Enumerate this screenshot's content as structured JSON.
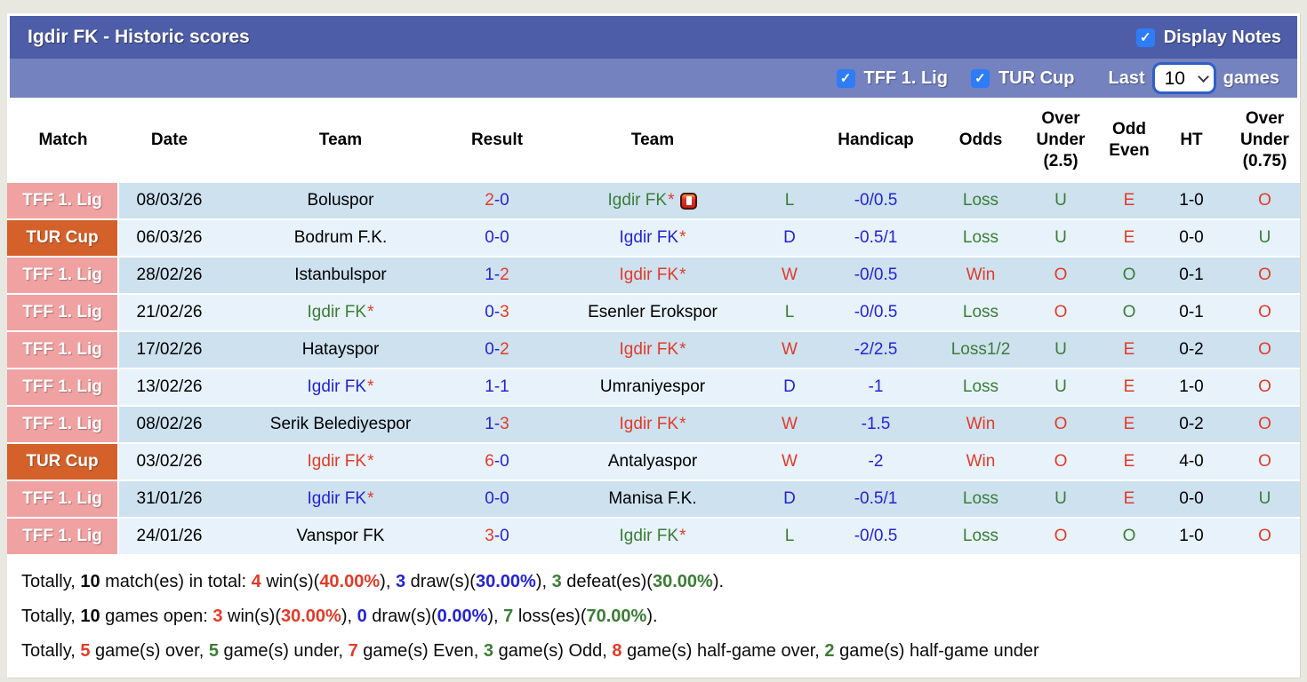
{
  "colors": {
    "title_bar": "#4e5da7",
    "filter_bar": "#7482bf",
    "row_dark": "#cde1ef",
    "row_light": "#e7f2fa",
    "badge_lig": "#f0a1a1",
    "badge_cup": "#d4602a",
    "checkbox_blue": "#2e7cf6",
    "text": {
      "red": "#e23b28",
      "blue": "#2424d2",
      "green": "#3b7d35",
      "black": "#000000"
    }
  },
  "header": {
    "title": "Igdir FK - Historic scores",
    "display_notes_label": "Display Notes",
    "display_notes_checked": true,
    "checkmark": "✓"
  },
  "filters": {
    "league1_label": "TFF 1. Lig",
    "league1_checked": true,
    "league2_label": "TUR Cup",
    "league2_checked": true,
    "last_label": "Last",
    "games_label": "games",
    "selected_count": "10"
  },
  "table": {
    "columns": [
      "Match",
      "Date",
      "Team",
      "Result",
      "Team",
      "",
      "Handicap",
      "Odds",
      "Over\nUnder\n(2.5)",
      "Odd\nEven",
      "HT",
      "Over\nUnder\n(0.75)"
    ],
    "rows": [
      {
        "league": {
          "label": "TFF 1. Lig",
          "type": "lig"
        },
        "date": "08/03/26",
        "home": {
          "name": "Boluspor",
          "color": "black",
          "star": false,
          "red_card": false
        },
        "score": {
          "home": "2",
          "home_color": "red",
          "sep_color": "blue",
          "away": "0",
          "away_color": "blue"
        },
        "away": {
          "name": "Igdir FK",
          "color": "green",
          "star": true,
          "red_card": true
        },
        "wdl": {
          "text": "L",
          "color": "green"
        },
        "handicap": {
          "text": "-0/0.5",
          "color": "blue"
        },
        "odds": {
          "text": "Loss",
          "color": "green"
        },
        "ou25": {
          "text": "U",
          "color": "green"
        },
        "odd_even": {
          "text": "E",
          "color": "red"
        },
        "ht": {
          "text": "1-0",
          "color": "black"
        },
        "ou075": {
          "text": "O",
          "color": "red"
        }
      },
      {
        "league": {
          "label": "TUR Cup",
          "type": "cup"
        },
        "date": "06/03/26",
        "home": {
          "name": "Bodrum F.K.",
          "color": "black",
          "star": false,
          "red_card": false
        },
        "score": {
          "home": "0",
          "home_color": "blue",
          "sep_color": "blue",
          "away": "0",
          "away_color": "blue"
        },
        "away": {
          "name": "Igdir FK",
          "color": "blue",
          "star": true,
          "red_card": false
        },
        "wdl": {
          "text": "D",
          "color": "blue"
        },
        "handicap": {
          "text": "-0.5/1",
          "color": "blue"
        },
        "odds": {
          "text": "Loss",
          "color": "green"
        },
        "ou25": {
          "text": "U",
          "color": "green"
        },
        "odd_even": {
          "text": "E",
          "color": "red"
        },
        "ht": {
          "text": "0-0",
          "color": "black"
        },
        "ou075": {
          "text": "U",
          "color": "green"
        }
      },
      {
        "league": {
          "label": "TFF 1. Lig",
          "type": "lig"
        },
        "date": "28/02/26",
        "home": {
          "name": "Istanbulspor",
          "color": "black",
          "star": false,
          "red_card": false
        },
        "score": {
          "home": "1",
          "home_color": "blue",
          "sep_color": "blue",
          "away": "2",
          "away_color": "red"
        },
        "away": {
          "name": "Igdir FK",
          "color": "red",
          "star": true,
          "red_card": false
        },
        "wdl": {
          "text": "W",
          "color": "red"
        },
        "handicap": {
          "text": "-0/0.5",
          "color": "blue"
        },
        "odds": {
          "text": "Win",
          "color": "red"
        },
        "ou25": {
          "text": "O",
          "color": "red"
        },
        "odd_even": {
          "text": "O",
          "color": "green"
        },
        "ht": {
          "text": "0-1",
          "color": "black"
        },
        "ou075": {
          "text": "O",
          "color": "red"
        }
      },
      {
        "league": {
          "label": "TFF 1. Lig",
          "type": "lig"
        },
        "date": "21/02/26",
        "home": {
          "name": "Igdir FK",
          "color": "green",
          "star": true,
          "red_card": false
        },
        "score": {
          "home": "0",
          "home_color": "blue",
          "sep_color": "blue",
          "away": "3",
          "away_color": "red"
        },
        "away": {
          "name": "Esenler Erokspor",
          "color": "black",
          "star": false,
          "red_card": false
        },
        "wdl": {
          "text": "L",
          "color": "green"
        },
        "handicap": {
          "text": "-0/0.5",
          "color": "blue"
        },
        "odds": {
          "text": "Loss",
          "color": "green"
        },
        "ou25": {
          "text": "O",
          "color": "red"
        },
        "odd_even": {
          "text": "O",
          "color": "green"
        },
        "ht": {
          "text": "0-1",
          "color": "black"
        },
        "ou075": {
          "text": "O",
          "color": "red"
        }
      },
      {
        "league": {
          "label": "TFF 1. Lig",
          "type": "lig"
        },
        "date": "17/02/26",
        "home": {
          "name": "Hatayspor",
          "color": "black",
          "star": false,
          "red_card": false
        },
        "score": {
          "home": "0",
          "home_color": "blue",
          "sep_color": "blue",
          "away": "2",
          "away_color": "red"
        },
        "away": {
          "name": "Igdir FK",
          "color": "red",
          "star": true,
          "red_card": false
        },
        "wdl": {
          "text": "W",
          "color": "red"
        },
        "handicap": {
          "text": "-2/2.5",
          "color": "blue"
        },
        "odds": {
          "text": "Loss1/2",
          "color": "green"
        },
        "ou25": {
          "text": "U",
          "color": "green"
        },
        "odd_even": {
          "text": "E",
          "color": "red"
        },
        "ht": {
          "text": "0-2",
          "color": "black"
        },
        "ou075": {
          "text": "O",
          "color": "red"
        }
      },
      {
        "league": {
          "label": "TFF 1. Lig",
          "type": "lig"
        },
        "date": "13/02/26",
        "home": {
          "name": "Igdir FK",
          "color": "blue",
          "star": true,
          "red_card": false
        },
        "score": {
          "home": "1",
          "home_color": "blue",
          "sep_color": "blue",
          "away": "1",
          "away_color": "blue"
        },
        "away": {
          "name": "Umraniyespor",
          "color": "black",
          "star": false,
          "red_card": false
        },
        "wdl": {
          "text": "D",
          "color": "blue"
        },
        "handicap": {
          "text": "-1",
          "color": "blue"
        },
        "odds": {
          "text": "Loss",
          "color": "green"
        },
        "ou25": {
          "text": "U",
          "color": "green"
        },
        "odd_even": {
          "text": "E",
          "color": "red"
        },
        "ht": {
          "text": "1-0",
          "color": "black"
        },
        "ou075": {
          "text": "O",
          "color": "red"
        }
      },
      {
        "league": {
          "label": "TFF 1. Lig",
          "type": "lig"
        },
        "date": "08/02/26",
        "home": {
          "name": "Serik Belediyespor",
          "color": "black",
          "star": false,
          "red_card": false
        },
        "score": {
          "home": "1",
          "home_color": "blue",
          "sep_color": "blue",
          "away": "3",
          "away_color": "red"
        },
        "away": {
          "name": "Igdir FK",
          "color": "red",
          "star": true,
          "red_card": false
        },
        "wdl": {
          "text": "W",
          "color": "red"
        },
        "handicap": {
          "text": "-1.5",
          "color": "blue"
        },
        "odds": {
          "text": "Win",
          "color": "red"
        },
        "ou25": {
          "text": "O",
          "color": "red"
        },
        "odd_even": {
          "text": "E",
          "color": "red"
        },
        "ht": {
          "text": "0-2",
          "color": "black"
        },
        "ou075": {
          "text": "O",
          "color": "red"
        }
      },
      {
        "league": {
          "label": "TUR Cup",
          "type": "cup"
        },
        "date": "03/02/26",
        "home": {
          "name": "Igdir FK",
          "color": "red",
          "star": true,
          "red_card": false
        },
        "score": {
          "home": "6",
          "home_color": "red",
          "sep_color": "blue",
          "away": "0",
          "away_color": "blue"
        },
        "away": {
          "name": "Antalyaspor",
          "color": "black",
          "star": false,
          "red_card": false
        },
        "wdl": {
          "text": "W",
          "color": "red"
        },
        "handicap": {
          "text": "-2",
          "color": "blue"
        },
        "odds": {
          "text": "Win",
          "color": "red"
        },
        "ou25": {
          "text": "O",
          "color": "red"
        },
        "odd_even": {
          "text": "E",
          "color": "red"
        },
        "ht": {
          "text": "4-0",
          "color": "black"
        },
        "ou075": {
          "text": "O",
          "color": "red"
        }
      },
      {
        "league": {
          "label": "TFF 1. Lig",
          "type": "lig"
        },
        "date": "31/01/26",
        "home": {
          "name": "Igdir FK",
          "color": "blue",
          "star": true,
          "red_card": false
        },
        "score": {
          "home": "0",
          "home_color": "blue",
          "sep_color": "blue",
          "away": "0",
          "away_color": "blue"
        },
        "away": {
          "name": "Manisa F.K.",
          "color": "black",
          "star": false,
          "red_card": false
        },
        "wdl": {
          "text": "D",
          "color": "blue"
        },
        "handicap": {
          "text": "-0.5/1",
          "color": "blue"
        },
        "odds": {
          "text": "Loss",
          "color": "green"
        },
        "ou25": {
          "text": "U",
          "color": "green"
        },
        "odd_even": {
          "text": "E",
          "color": "red"
        },
        "ht": {
          "text": "0-0",
          "color": "black"
        },
        "ou075": {
          "text": "U",
          "color": "green"
        }
      },
      {
        "league": {
          "label": "TFF 1. Lig",
          "type": "lig"
        },
        "date": "24/01/26",
        "home": {
          "name": "Vanspor FK",
          "color": "black",
          "star": false,
          "red_card": false
        },
        "score": {
          "home": "3",
          "home_color": "red",
          "sep_color": "blue",
          "away": "0",
          "away_color": "blue"
        },
        "away": {
          "name": "Igdir FK",
          "color": "green",
          "star": true,
          "red_card": false
        },
        "wdl": {
          "text": "L",
          "color": "green"
        },
        "handicap": {
          "text": "-0/0.5",
          "color": "blue"
        },
        "odds": {
          "text": "Loss",
          "color": "green"
        },
        "ou25": {
          "text": "O",
          "color": "red"
        },
        "odd_even": {
          "text": "O",
          "color": "green"
        },
        "ht": {
          "text": "1-0",
          "color": "black"
        },
        "ou075": {
          "text": "O",
          "color": "red"
        }
      }
    ]
  },
  "summary": [
    [
      {
        "text": "Totally, "
      },
      {
        "text": "10",
        "bold": true
      },
      {
        "text": " match(es) in total: "
      },
      {
        "text": "4",
        "color": "red",
        "bold": true
      },
      {
        "text": " win(s)("
      },
      {
        "text": "40.00%",
        "color": "red",
        "bold": true
      },
      {
        "text": "), "
      },
      {
        "text": "3",
        "color": "blue",
        "bold": true
      },
      {
        "text": " draw(s)("
      },
      {
        "text": "30.00%",
        "color": "blue",
        "bold": true
      },
      {
        "text": "), "
      },
      {
        "text": "3",
        "color": "green",
        "bold": true
      },
      {
        "text": " defeat(es)("
      },
      {
        "text": "30.00%",
        "color": "green",
        "bold": true
      },
      {
        "text": ")."
      }
    ],
    [
      {
        "text": "Totally, "
      },
      {
        "text": "10",
        "bold": true
      },
      {
        "text": " games open: "
      },
      {
        "text": "3",
        "color": "red",
        "bold": true
      },
      {
        "text": " win(s)("
      },
      {
        "text": "30.00%",
        "color": "red",
        "bold": true
      },
      {
        "text": "), "
      },
      {
        "text": "0",
        "color": "blue",
        "bold": true
      },
      {
        "text": " draw(s)("
      },
      {
        "text": "0.00%",
        "color": "blue",
        "bold": true
      },
      {
        "text": "), "
      },
      {
        "text": "7",
        "color": "green",
        "bold": true
      },
      {
        "text": " loss(es)("
      },
      {
        "text": "70.00%",
        "color": "green",
        "bold": true
      },
      {
        "text": ")."
      }
    ],
    [
      {
        "text": "Totally, "
      },
      {
        "text": "5",
        "color": "red",
        "bold": true
      },
      {
        "text": " game(s) over, "
      },
      {
        "text": "5",
        "color": "green",
        "bold": true
      },
      {
        "text": " game(s) under, "
      },
      {
        "text": "7",
        "color": "red",
        "bold": true
      },
      {
        "text": " game(s) Even, "
      },
      {
        "text": "3",
        "color": "green",
        "bold": true
      },
      {
        "text": " game(s) Odd, "
      },
      {
        "text": "8",
        "color": "red",
        "bold": true
      },
      {
        "text": " game(s) half-game over, "
      },
      {
        "text": "2",
        "color": "green",
        "bold": true
      },
      {
        "text": " game(s) half-game under"
      }
    ]
  ]
}
